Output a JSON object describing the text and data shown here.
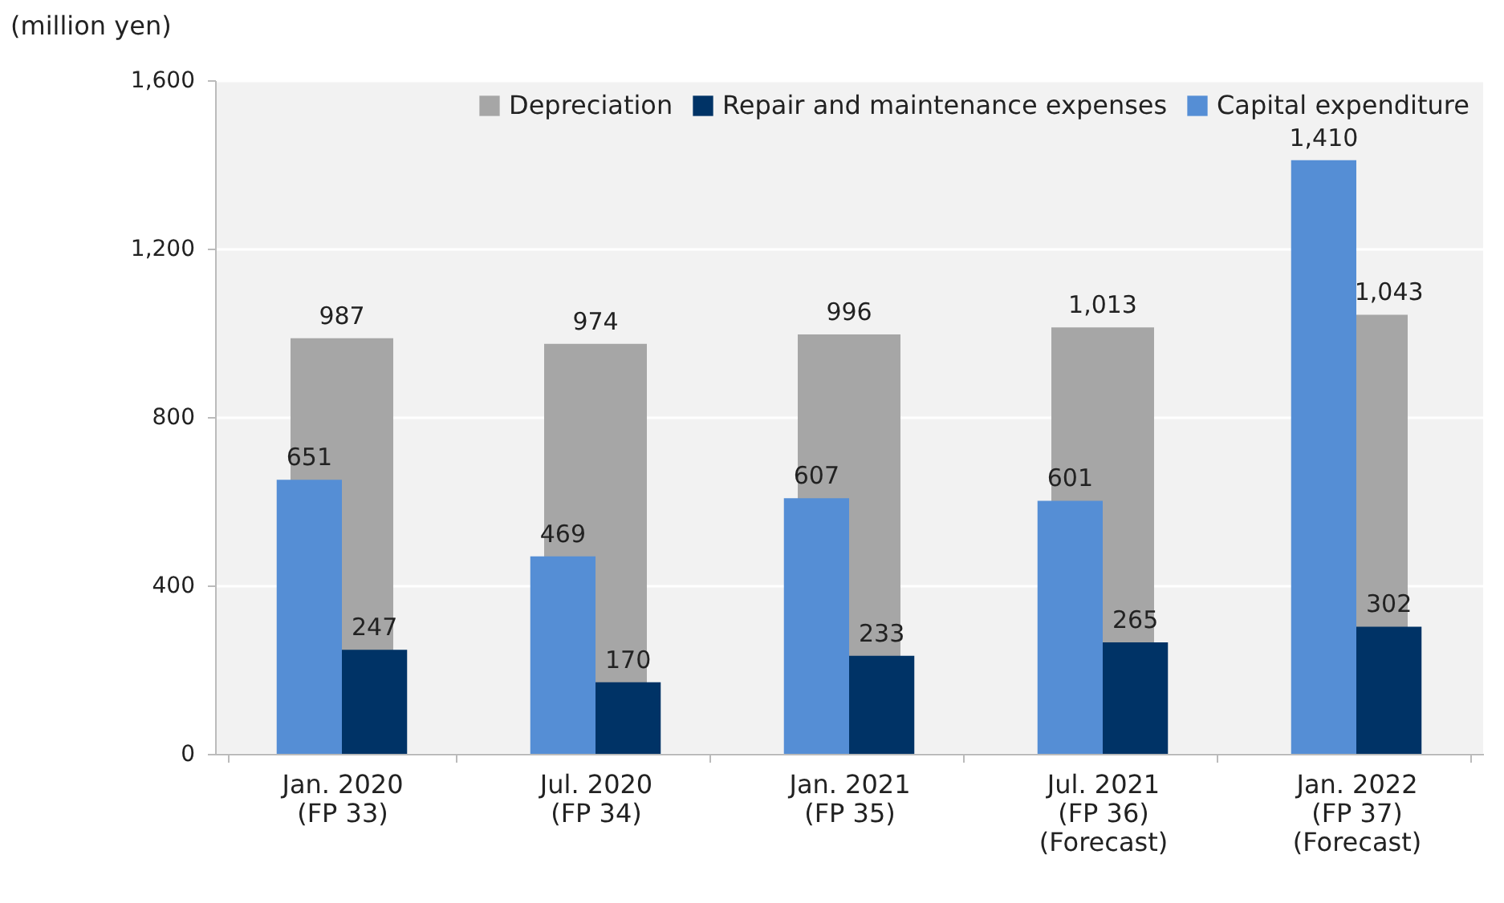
{
  "chart_data": {
    "type": "bar",
    "ylabel": "(million yen)",
    "categories": [
      "Jan. 2020\n(FP 33)",
      "Jul. 2020\n(FP 34)",
      "Jan. 2021\n(FP 35)",
      "Jul. 2021\n(FP 36)\n(Forecast)",
      "Jan. 2022\n(FP 37)\n(Forecast)"
    ],
    "series": [
      {
        "name": "Depreciation",
        "color": "#a6a6a6",
        "values": [
          987,
          974,
          996,
          1013,
          1043
        ],
        "value_labels": [
          "987",
          "974",
          "996",
          "1,013",
          "1,043"
        ]
      },
      {
        "name": "Repair and maintenance expenses",
        "color": "#003366",
        "values": [
          247,
          170,
          233,
          265,
          302
        ],
        "value_labels": [
          "247",
          "170",
          "233",
          "265",
          "302"
        ]
      },
      {
        "name": "Capital expenditure",
        "color": "#558ed5",
        "values": [
          651,
          469,
          607,
          601,
          1410
        ],
        "value_labels": [
          "651",
          "469",
          "607",
          "601",
          "1,410"
        ]
      }
    ],
    "ylim": [
      0,
      1600
    ],
    "yticks": [
      {
        "value": 0,
        "label": "0"
      },
      {
        "value": 400,
        "label": "400"
      },
      {
        "value": 800,
        "label": "800"
      },
      {
        "value": 1200,
        "label": "1,200"
      },
      {
        "value": 1600,
        "label": "1,600"
      }
    ],
    "grid": "y",
    "legend": "top right"
  }
}
